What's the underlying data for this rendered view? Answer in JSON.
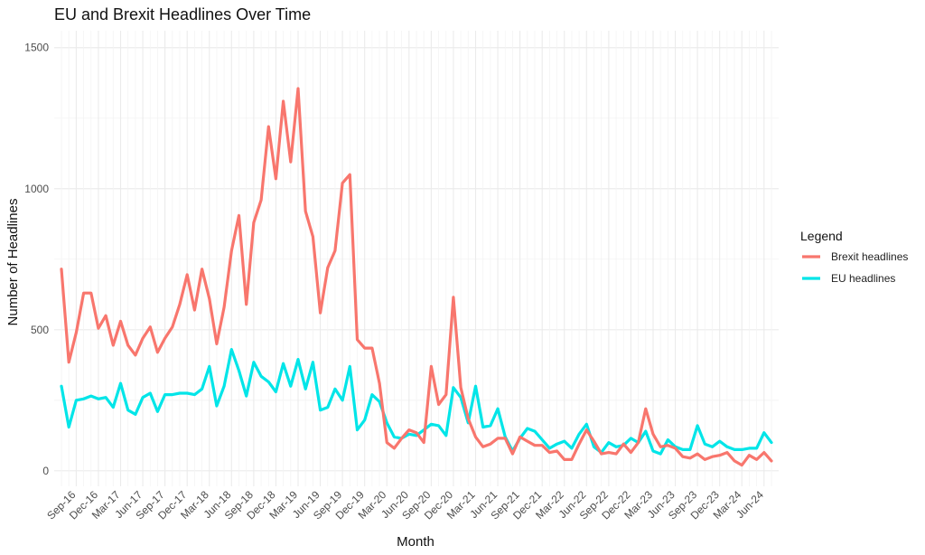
{
  "chart_data": {
    "type": "line",
    "title": "EU and Brexit Headlines Over Time",
    "xlabel": "Month",
    "ylabel": "Number of Headlines",
    "ylim": [
      -55,
      1560
    ],
    "yticks": [
      0,
      500,
      1000,
      1500
    ],
    "x_start_month": "Jul-16",
    "xticks": [
      "Sep-16",
      "Dec-16",
      "Mar-17",
      "Jun-17",
      "Sep-17",
      "Dec-17",
      "Mar-18",
      "Jun-18",
      "Sep-18",
      "Dec-18",
      "Mar-19",
      "Jun-19",
      "Sep-19",
      "Dec-19",
      "Mar-20",
      "Jun-20",
      "Sep-20",
      "Dec-20",
      "Mar-21",
      "Jun-21",
      "Sep-21",
      "Dec-21",
      "Mar-22",
      "Jun-22",
      "Sep-22",
      "Dec-22",
      "Mar-23",
      "Jun-23",
      "Sep-23",
      "Dec-23",
      "Mar-24",
      "Jun-24"
    ],
    "grid": true,
    "legend": {
      "title": "Legend",
      "position": "right"
    },
    "series": [
      {
        "name": "Brexit headlines",
        "color": "#F8766D",
        "values": [
          715,
          385,
          490,
          630,
          630,
          505,
          550,
          445,
          530,
          445,
          410,
          470,
          510,
          420,
          470,
          510,
          590,
          695,
          570,
          715,
          610,
          450,
          580,
          780,
          905,
          590,
          880,
          960,
          1220,
          1035,
          1310,
          1095,
          1355,
          920,
          830,
          560,
          720,
          780,
          1020,
          1050,
          465,
          435,
          435,
          310,
          100,
          80,
          115,
          145,
          135,
          100,
          370,
          235,
          270,
          615,
          295,
          185,
          120,
          85,
          95,
          115,
          115,
          60,
          120,
          105,
          90,
          90,
          65,
          70,
          40,
          40,
          95,
          145,
          105,
          60,
          65,
          60,
          95,
          65,
          100,
          220,
          130,
          85,
          90,
          80,
          50,
          45,
          60,
          40,
          50,
          55,
          65,
          35,
          20,
          55,
          40,
          65,
          35
        ]
      },
      {
        "name": "EU headlines",
        "color": "#00E5E8",
        "values": [
          300,
          155,
          250,
          255,
          265,
          255,
          260,
          225,
          310,
          215,
          200,
          260,
          275,
          210,
          270,
          270,
          275,
          275,
          270,
          290,
          370,
          230,
          300,
          430,
          355,
          265,
          385,
          335,
          315,
          280,
          380,
          300,
          395,
          290,
          385,
          215,
          225,
          290,
          250,
          370,
          145,
          180,
          270,
          245,
          170,
          120,
          115,
          130,
          125,
          145,
          165,
          160,
          125,
          295,
          260,
          170,
          300,
          155,
          160,
          220,
          120,
          70,
          115,
          150,
          140,
          110,
          80,
          95,
          105,
          80,
          130,
          165,
          85,
          65,
          100,
          85,
          90,
          115,
          100,
          140,
          70,
          60,
          110,
          85,
          75,
          75,
          160,
          95,
          85,
          105,
          85,
          75,
          75,
          80,
          80,
          135,
          100
        ]
      }
    ]
  }
}
